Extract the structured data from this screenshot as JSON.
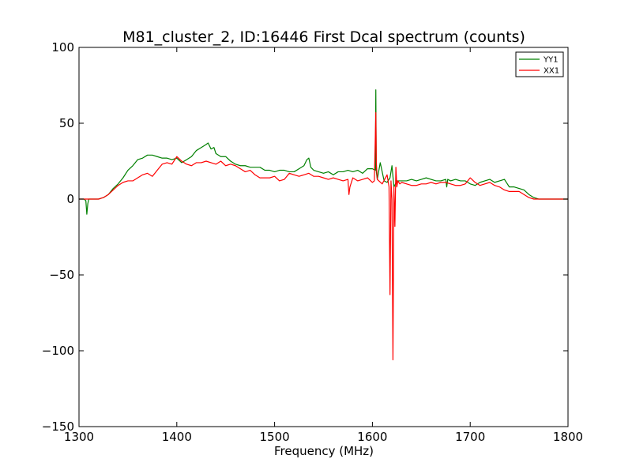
{
  "chart_data": {
    "type": "line",
    "title": "M81_cluster_2, ID:16446 First Dcal spectrum (counts)",
    "xlabel": "Frequency (MHz)",
    "ylabel": "",
    "xlim": [
      1300,
      1800
    ],
    "ylim": [
      -150,
      100
    ],
    "xticks": [
      1300,
      1400,
      1500,
      1600,
      1700,
      1800
    ],
    "yticks": [
      -150,
      -100,
      -50,
      0,
      50,
      100
    ],
    "xtick_labels": [
      "1300",
      "1400",
      "1500",
      "1600",
      "1700",
      "1800"
    ],
    "ytick_labels": [
      "−150",
      "−100",
      "−50",
      "0",
      "50",
      "100"
    ],
    "grid": false,
    "legend_position": "top-right",
    "series": [
      {
        "name": "YY1",
        "color": "#008000",
        "x": [
          1300,
          1305,
          1307,
          1308,
          1309,
          1310,
          1315,
          1320,
          1325,
          1330,
          1335,
          1340,
          1345,
          1350,
          1355,
          1360,
          1365,
          1370,
          1375,
          1380,
          1385,
          1390,
          1395,
          1400,
          1405,
          1410,
          1415,
          1420,
          1425,
          1430,
          1432,
          1435,
          1438,
          1440,
          1445,
          1450,
          1455,
          1460,
          1465,
          1470,
          1475,
          1480,
          1485,
          1490,
          1495,
          1500,
          1505,
          1510,
          1515,
          1520,
          1525,
          1530,
          1533,
          1535,
          1537,
          1540,
          1545,
          1550,
          1555,
          1560,
          1565,
          1570,
          1575,
          1580,
          1585,
          1590,
          1595,
          1600,
          1603,
          1603.5,
          1604,
          1605,
          1608,
          1612,
          1615,
          1618,
          1620,
          1622,
          1625,
          1630,
          1635,
          1640,
          1645,
          1650,
          1655,
          1660,
          1665,
          1670,
          1675,
          1676,
          1677,
          1680,
          1685,
          1690,
          1695,
          1700,
          1705,
          1710,
          1715,
          1720,
          1725,
          1730,
          1735,
          1740,
          1745,
          1750,
          1755,
          1760,
          1765,
          1770,
          1775,
          1780,
          1785,
          1790,
          1795,
          1800
        ],
        "values": [
          0,
          0,
          -1,
          -10,
          -3,
          0,
          0,
          0,
          1,
          3,
          7,
          10,
          14,
          19,
          22,
          26,
          27,
          29,
          29,
          28,
          27,
          27,
          26,
          27,
          24,
          26,
          28,
          32,
          34,
          36,
          37,
          33,
          34,
          30,
          28,
          28,
          25,
          23,
          22,
          22,
          21,
          21,
          21,
          19,
          19,
          18,
          19,
          19,
          18,
          18,
          20,
          22,
          26,
          27,
          21,
          19,
          18,
          17,
          18,
          16,
          18,
          18,
          19,
          18,
          19,
          17,
          20,
          20,
          19,
          72,
          18,
          13,
          24,
          12,
          11,
          14,
          22,
          8,
          12,
          12,
          12,
          13,
          12,
          13,
          14,
          13,
          12,
          12,
          13,
          8,
          13,
          12,
          13,
          12,
          12,
          10,
          9,
          11,
          12,
          13,
          11,
          12,
          13,
          8,
          8,
          7,
          6,
          3,
          1,
          0,
          0,
          0,
          0,
          0,
          0,
          0
        ]
      },
      {
        "name": "XX1",
        "color": "#ff0000",
        "x": [
          1300,
          1305,
          1310,
          1315,
          1320,
          1325,
          1330,
          1335,
          1340,
          1345,
          1350,
          1355,
          1360,
          1365,
          1370,
          1375,
          1380,
          1385,
          1390,
          1395,
          1400,
          1405,
          1410,
          1415,
          1420,
          1425,
          1430,
          1435,
          1440,
          1445,
          1450,
          1455,
          1460,
          1465,
          1470,
          1475,
          1480,
          1485,
          1490,
          1495,
          1500,
          1505,
          1510,
          1515,
          1520,
          1525,
          1530,
          1535,
          1540,
          1545,
          1550,
          1555,
          1560,
          1565,
          1570,
          1575,
          1576,
          1577,
          1580,
          1585,
          1590,
          1595,
          1600,
          1602,
          1603.5,
          1604,
          1605,
          1610,
          1615,
          1617,
          1618,
          1619,
          1620,
          1621,
          1622,
          1623,
          1624,
          1625,
          1626,
          1627,
          1628,
          1630,
          1635,
          1640,
          1645,
          1650,
          1655,
          1660,
          1665,
          1670,
          1675,
          1680,
          1685,
          1690,
          1695,
          1700,
          1705,
          1710,
          1715,
          1720,
          1725,
          1730,
          1735,
          1740,
          1745,
          1750,
          1755,
          1760,
          1765,
          1770,
          1775,
          1780,
          1785,
          1790,
          1795,
          1800
        ],
        "values": [
          0,
          0,
          0,
          0,
          0,
          1,
          3,
          6,
          9,
          11,
          12,
          12,
          14,
          16,
          17,
          15,
          19,
          23,
          24,
          23,
          28,
          25,
          23,
          22,
          24,
          24,
          25,
          24,
          23,
          25,
          22,
          23,
          22,
          20,
          18,
          19,
          16,
          14,
          14,
          14,
          15,
          12,
          13,
          17,
          16,
          15,
          16,
          17,
          15,
          15,
          14,
          13,
          14,
          13,
          12,
          13,
          3,
          8,
          14,
          12,
          13,
          14,
          11,
          12,
          57,
          24,
          13,
          10,
          16,
          8,
          -63,
          12,
          0,
          -106,
          8,
          -18,
          21,
          8,
          12,
          11,
          10,
          11,
          10,
          9,
          9,
          10,
          10,
          11,
          10,
          11,
          11,
          10,
          9,
          9,
          10,
          14,
          11,
          9,
          10,
          11,
          9,
          8,
          6,
          5,
          5,
          5,
          3,
          1,
          0,
          0,
          0,
          0,
          0,
          0,
          0,
          0
        ]
      }
    ]
  }
}
